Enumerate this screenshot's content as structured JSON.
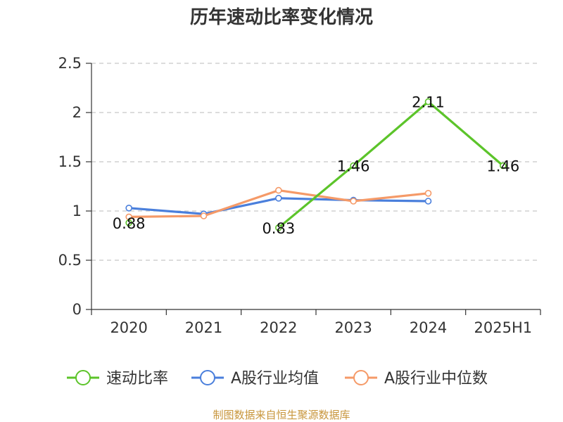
{
  "chart_data": {
    "type": "line",
    "title": "历年速动比率变化情况",
    "categories": [
      "2020",
      "2021",
      "2022",
      "2023",
      "2024",
      "2025H1"
    ],
    "ylim": [
      0,
      2.5
    ],
    "yticks": [
      "0",
      "0.5",
      "1",
      "1.5",
      "2",
      "2.5"
    ],
    "grid": true,
    "legend_position": "bottom",
    "series": [
      {
        "name": "速动比率",
        "color": "#5cc42a",
        "values": [
          0.88,
          null,
          0.83,
          1.46,
          2.11,
          1.46
        ],
        "labels": [
          "0.88",
          null,
          "0.83",
          "1.46",
          "2.11",
          "1.46"
        ]
      },
      {
        "name": "A股行业均值",
        "color": "#4a7fdc",
        "values": [
          1.03,
          0.97,
          1.13,
          1.11,
          1.1,
          null
        ]
      },
      {
        "name": "A股行业中位数",
        "color": "#f59a68",
        "values": [
          0.94,
          0.95,
          1.21,
          1.1,
          1.18,
          null
        ]
      }
    ]
  },
  "source": "制图数据来自恒生聚源数据库"
}
